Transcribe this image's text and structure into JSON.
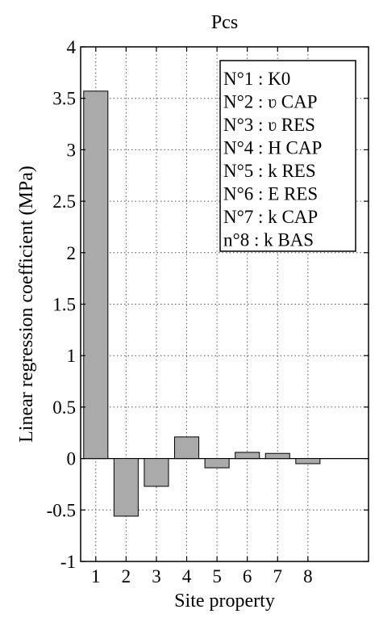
{
  "chart_data": {
    "type": "bar",
    "title": "Pcs",
    "xlabel": "Site property",
    "ylabel": "Linear regression coefficient (MPa)",
    "categories": [
      "1",
      "2",
      "3",
      "4",
      "5",
      "6",
      "7",
      "8"
    ],
    "values": [
      3.57,
      -0.56,
      -0.27,
      0.21,
      -0.09,
      0.06,
      0.05,
      -0.05
    ],
    "ylim": [
      -1,
      4
    ],
    "yticks": [
      -1,
      -0.5,
      0,
      0.5,
      1,
      1.5,
      2,
      2.5,
      3,
      3.5,
      4
    ],
    "ytick_labels": [
      "-1",
      "-0.5",
      "0",
      "0.5",
      "1",
      "1.5",
      "2",
      "2.5",
      "3",
      "3.5",
      "4"
    ],
    "xlim": [
      0.5,
      10
    ],
    "grid": true,
    "legend_position": "top-right",
    "legend_entries": [
      "N°1 : K0",
      "N°2 : ʋ CAP",
      "N°3 : ʋ RES",
      "N°4 : H CAP",
      "N°5 : k RES",
      "N°6 : E RES",
      "N°7 : k CAP",
      "n°8 : k BAS"
    ],
    "bar_color": "#aaaaaa"
  }
}
